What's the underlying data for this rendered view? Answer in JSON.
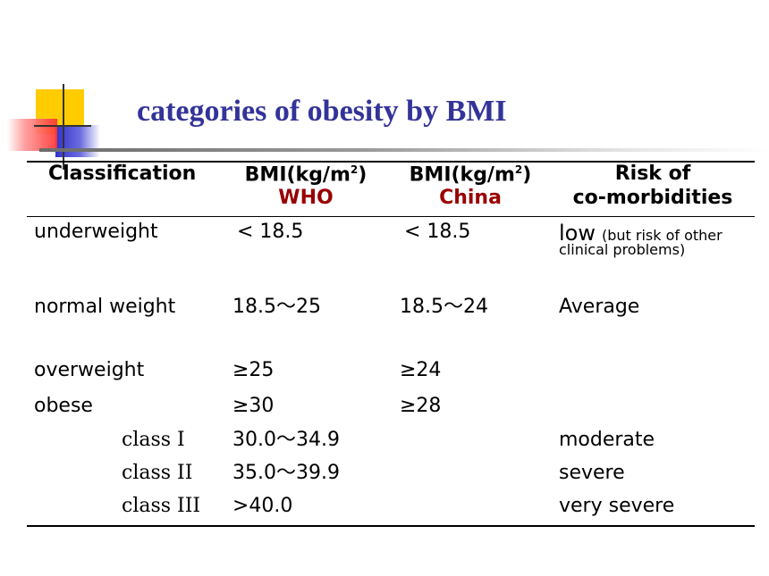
{
  "title": "categories of obesity by BMI",
  "colors": {
    "title": "#333399",
    "highlight": "#990000"
  },
  "header": {
    "classification": "Classification",
    "who_line1": "BMI(kg/m",
    "who_sup": "2",
    "who_close": ")",
    "who_line2": "WHO",
    "china_line1": "BMI(kg/m",
    "china_sup": "2",
    "china_close": ")",
    "china_line2": "China",
    "risk_line1": "Risk of",
    "risk_line2": "co-morbidities"
  },
  "rows": [
    {
      "classification": "underweight",
      "who": "< 18.5",
      "china": "< 18.5",
      "risk": "low",
      "risk_note_1": "(but risk of other",
      "risk_note_2": "clinical problems)"
    },
    {
      "classification": "normal weight",
      "who": "18.5～25",
      "china": "18.5～24",
      "risk": "Average"
    },
    {
      "classification": "overweight",
      "who": "≥25",
      "china": "≥24",
      "risk": ""
    },
    {
      "classification": "obese",
      "who": "≥30",
      "china": "≥28",
      "risk": ""
    },
    {
      "classification": "class I",
      "who": "30.0～34.9",
      "china": "",
      "risk": "moderate"
    },
    {
      "classification": "class II",
      "who": "35.0～39.9",
      "china": "",
      "risk": "severe"
    },
    {
      "classification": "class III",
      "who": ">40.0",
      "china": "",
      "risk": "very severe"
    }
  ]
}
